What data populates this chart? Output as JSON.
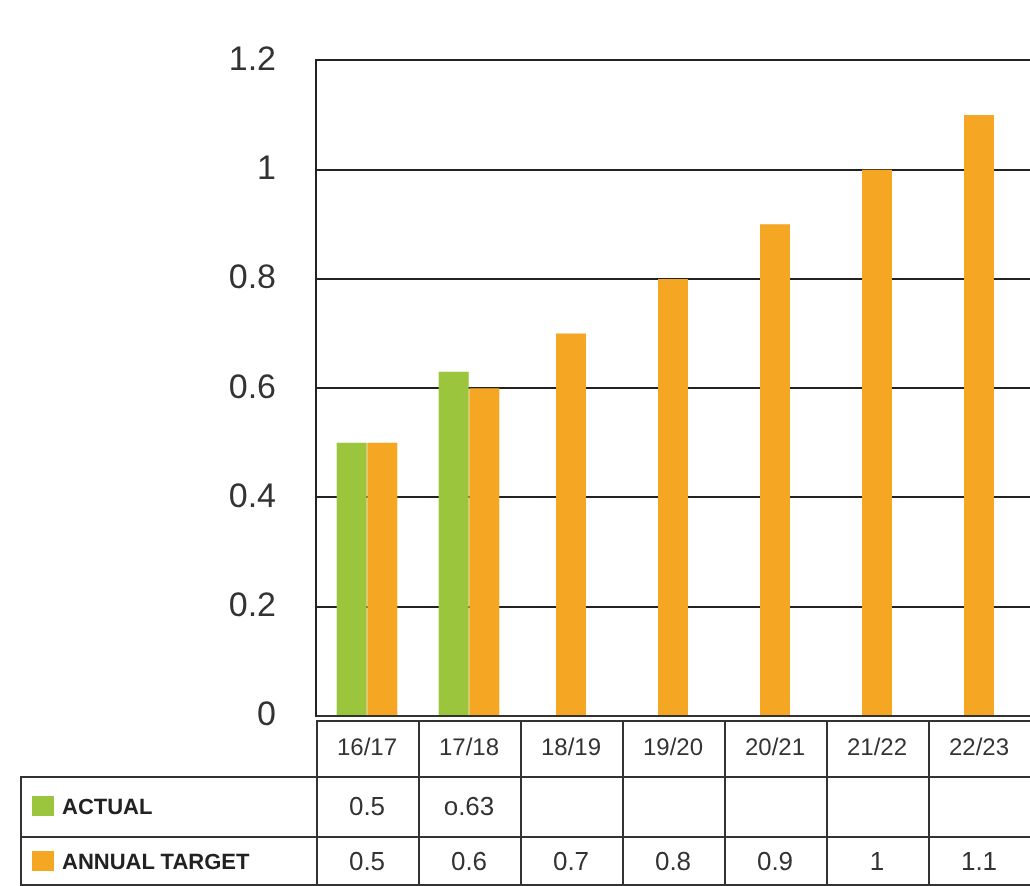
{
  "chart_data": {
    "type": "bar",
    "categories": [
      "16/17",
      "17/18",
      "18/19",
      "19/20",
      "20/21",
      "21/22",
      "22/23"
    ],
    "series": [
      {
        "name": "ACTUAL",
        "color": "#9bc53d",
        "values": [
          0.5,
          0.63,
          null,
          null,
          null,
          null,
          null
        ],
        "value_labels": [
          "0.5",
          "o.63",
          null,
          null,
          null,
          null,
          null
        ]
      },
      {
        "name": "ANNUAL TARGET",
        "color": "#f5a623",
        "values": [
          0.5,
          0.6,
          0.7,
          0.8,
          0.9,
          1,
          1.1
        ],
        "value_labels": [
          "0.5",
          "0.6",
          "0.7",
          "0.8",
          "0.9",
          "1",
          "1.1"
        ]
      }
    ],
    "ylim": [
      0,
      1.2
    ],
    "yticks": [
      0,
      0.2,
      0.4,
      0.6,
      0.8,
      1,
      1.2
    ],
    "grid": "y",
    "legend": "bottom"
  }
}
